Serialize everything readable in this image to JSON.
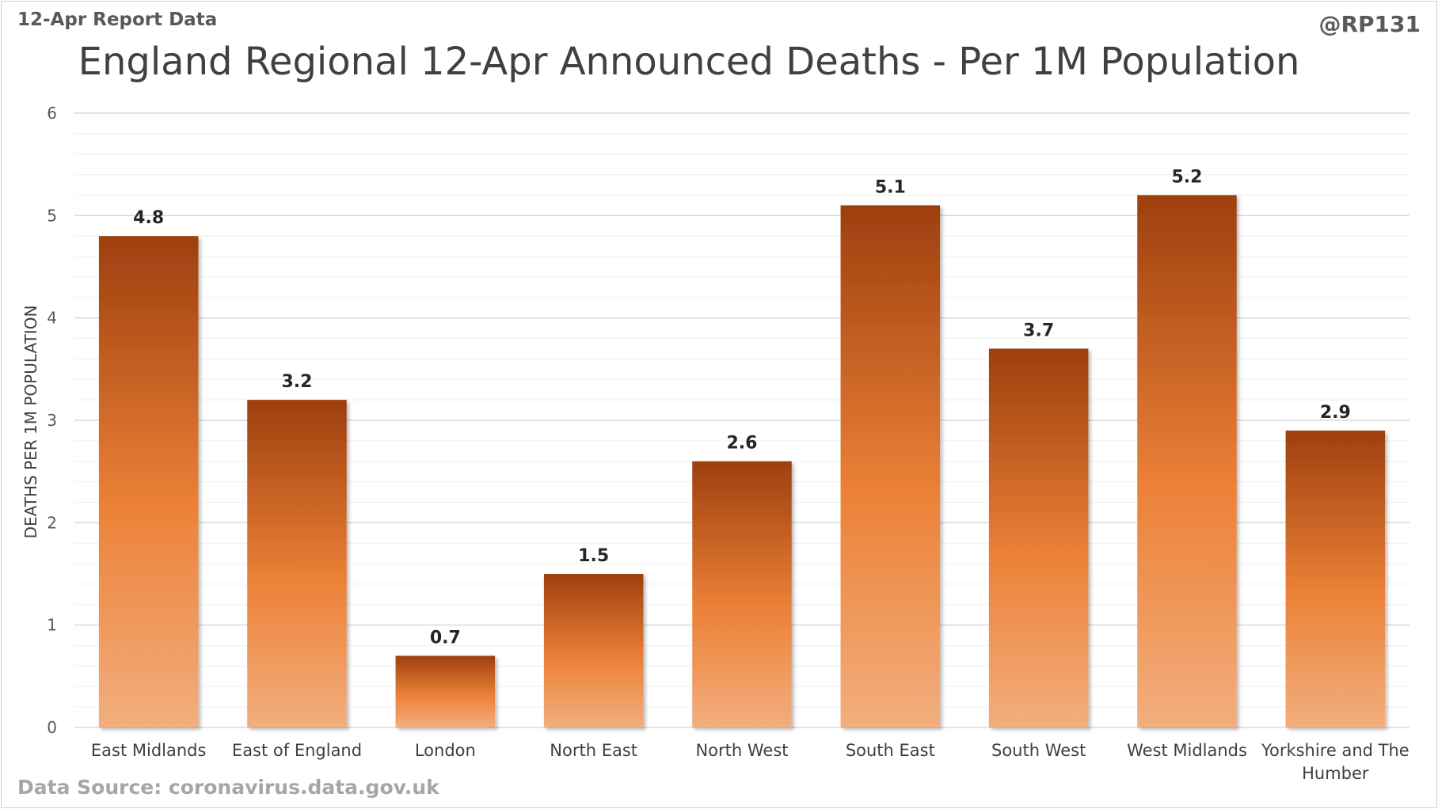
{
  "header": {
    "top_left": "12-Apr Report Data",
    "top_right": "@RP131"
  },
  "footer": {
    "source": "Data Source: coronavirus.data.gov.uk"
  },
  "colors": {
    "bar_top": "#9e3f0f",
    "bar_mid": "#ec8137",
    "bar_bottom": "#f2ae7e",
    "grid_major": "#d9d9d9",
    "grid_minor": "#efefef"
  },
  "chart_data": {
    "type": "bar",
    "title": "England Regional 12-Apr Announced Deaths - Per 1M Population",
    "xlabel": "",
    "ylabel": "DEATHS PER 1M POPULATION",
    "ylim": [
      0,
      6
    ],
    "yticks": [
      0,
      1,
      2,
      3,
      4,
      5,
      6
    ],
    "minor_grid_step": 0.2,
    "grid": true,
    "legend": "none",
    "categories": [
      [
        "East Midlands"
      ],
      [
        "East of England"
      ],
      [
        "London"
      ],
      [
        "North East"
      ],
      [
        "North West"
      ],
      [
        "South East"
      ],
      [
        "South West"
      ],
      [
        "West Midlands"
      ],
      [
        "Yorkshire and The",
        "Humber"
      ]
    ],
    "values": [
      4.8,
      3.2,
      0.7,
      1.5,
      2.6,
      5.1,
      3.7,
      5.2,
      2.9
    ],
    "data_labels": [
      "4.8",
      "3.2",
      "0.7",
      "1.5",
      "2.6",
      "5.1",
      "3.7",
      "5.2",
      "2.9"
    ]
  }
}
